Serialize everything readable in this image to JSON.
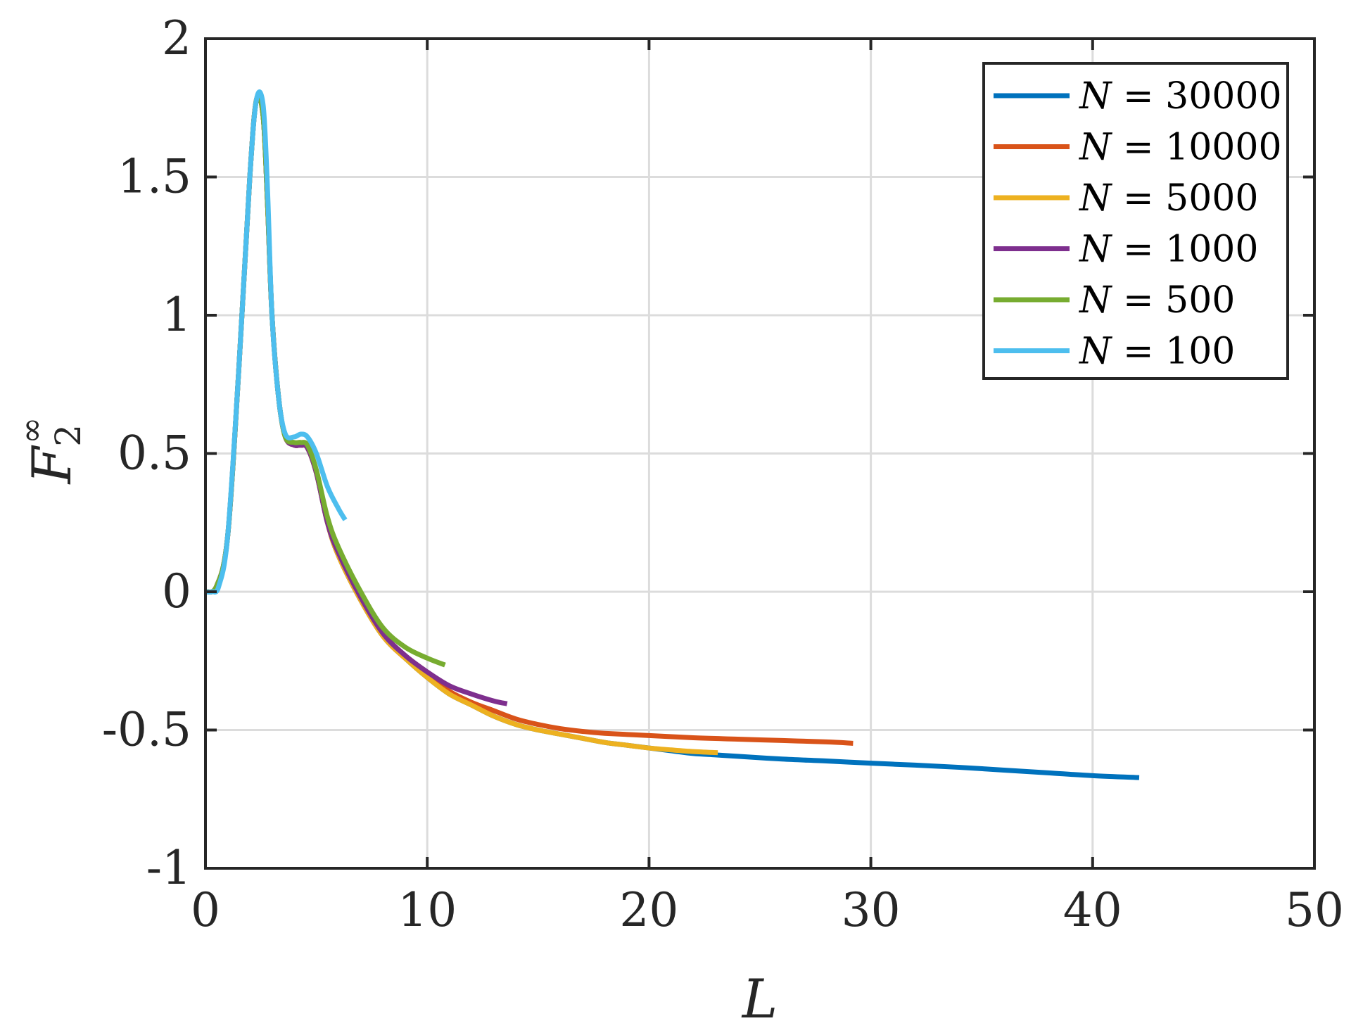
{
  "chart_data": {
    "type": "line",
    "xlabel": "L",
    "ylabel": {
      "base": "F",
      "superscript": "∞",
      "subscript": "2"
    },
    "xlim": [
      0,
      50
    ],
    "ylim": [
      -1,
      2
    ],
    "x_ticks": [
      0,
      10,
      20,
      30,
      40,
      50
    ],
    "x_tick_labels": [
      "0",
      "10",
      "20",
      "30",
      "40",
      "50"
    ],
    "y_ticks": [
      -1,
      -0.5,
      0,
      0.5,
      1,
      1.5,
      2
    ],
    "y_tick_labels": [
      "-1",
      "-0.5",
      "0",
      "0.5",
      "1",
      "1.5",
      "2"
    ],
    "grid": true,
    "legend_position": "top-right",
    "series": [
      {
        "name": "N = 30000",
        "var": "N",
        "value": "30000",
        "color": "#0072BD",
        "x": [
          0,
          0.5,
          1,
          1.5,
          2,
          2.3,
          2.6,
          2.8,
          3,
          3.3,
          3.6,
          4,
          4.3,
          4.6,
          5,
          5.5,
          6,
          7,
          8,
          9,
          10,
          11,
          12,
          13,
          14,
          15,
          16,
          17,
          18,
          19,
          20,
          21,
          22,
          23,
          24,
          26,
          28,
          30,
          32,
          34,
          36,
          38,
          40,
          42.1
        ],
        "y": [
          0,
          0.02,
          0.2,
          0.8,
          1.5,
          1.78,
          1.72,
          1.4,
          1.0,
          0.7,
          0.56,
          0.53,
          0.53,
          0.52,
          0.43,
          0.25,
          0.13,
          -0.03,
          -0.16,
          -0.24,
          -0.31,
          -0.37,
          -0.41,
          -0.45,
          -0.48,
          -0.5,
          -0.515,
          -0.53,
          -0.545,
          -0.555,
          -0.565,
          -0.575,
          -0.585,
          -0.59,
          -0.595,
          -0.605,
          -0.612,
          -0.62,
          -0.627,
          -0.635,
          -0.645,
          -0.655,
          -0.665,
          -0.672
        ]
      },
      {
        "name": "N = 10000",
        "var": "N",
        "value": "10000",
        "color": "#D95319",
        "x": [
          0,
          0.5,
          1,
          1.5,
          2,
          2.3,
          2.6,
          2.8,
          3,
          3.3,
          3.6,
          4,
          4.3,
          4.6,
          5,
          5.5,
          6,
          7,
          8,
          9,
          10,
          11,
          12,
          13,
          14,
          15,
          16,
          17,
          18,
          20,
          22,
          24,
          26,
          28,
          29.2
        ],
        "y": [
          0,
          0.02,
          0.2,
          0.8,
          1.5,
          1.78,
          1.72,
          1.4,
          1.0,
          0.7,
          0.56,
          0.53,
          0.53,
          0.52,
          0.43,
          0.25,
          0.13,
          -0.03,
          -0.16,
          -0.24,
          -0.3,
          -0.36,
          -0.4,
          -0.43,
          -0.46,
          -0.48,
          -0.495,
          -0.505,
          -0.512,
          -0.52,
          -0.528,
          -0.533,
          -0.538,
          -0.543,
          -0.548
        ]
      },
      {
        "name": "N = 5000",
        "var": "N",
        "value": "5000",
        "color": "#EDB120",
        "x": [
          0,
          0.5,
          1,
          1.5,
          2,
          2.3,
          2.6,
          2.8,
          3,
          3.3,
          3.6,
          4,
          4.3,
          4.6,
          5,
          5.5,
          6,
          7,
          8,
          9,
          10,
          11,
          12,
          13,
          14,
          15,
          16,
          17,
          18,
          19,
          20,
          21,
          22,
          23.1
        ],
        "y": [
          0,
          0.02,
          0.2,
          0.8,
          1.5,
          1.78,
          1.72,
          1.4,
          1.0,
          0.7,
          0.56,
          0.53,
          0.53,
          0.52,
          0.43,
          0.25,
          0.13,
          -0.03,
          -0.16,
          -0.24,
          -0.31,
          -0.37,
          -0.41,
          -0.45,
          -0.48,
          -0.5,
          -0.515,
          -0.53,
          -0.545,
          -0.555,
          -0.565,
          -0.572,
          -0.578,
          -0.582
        ]
      },
      {
        "name": "N = 1000",
        "var": "N",
        "value": "1000",
        "color": "#7E2F8E",
        "x": [
          0,
          0.5,
          1,
          1.5,
          2,
          2.3,
          2.6,
          2.8,
          3,
          3.3,
          3.6,
          4,
          4.3,
          4.6,
          5,
          5.5,
          6,
          7,
          8,
          9,
          10,
          11,
          12,
          13,
          13.6
        ],
        "y": [
          0,
          0.02,
          0.2,
          0.8,
          1.5,
          1.78,
          1.72,
          1.4,
          1.0,
          0.7,
          0.56,
          0.53,
          0.53,
          0.52,
          0.43,
          0.25,
          0.14,
          -0.02,
          -0.15,
          -0.23,
          -0.29,
          -0.34,
          -0.37,
          -0.395,
          -0.405
        ]
      },
      {
        "name": "N = 500",
        "var": "N",
        "value": "500",
        "color": "#77AC30",
        "x": [
          0,
          0.5,
          1,
          1.5,
          2,
          2.3,
          2.6,
          2.8,
          3,
          3.3,
          3.6,
          4,
          4.3,
          4.6,
          5,
          5.5,
          6,
          7,
          8,
          9,
          10,
          10.8
        ],
        "y": [
          0,
          0.02,
          0.2,
          0.8,
          1.5,
          1.78,
          1.72,
          1.4,
          1.0,
          0.7,
          0.56,
          0.54,
          0.54,
          0.53,
          0.44,
          0.27,
          0.16,
          0.0,
          -0.13,
          -0.2,
          -0.24,
          -0.265
        ]
      },
      {
        "name": "N = 100",
        "var": "N",
        "value": "100",
        "color": "#4DBEEE",
        "x": [
          0,
          0.3,
          0.6,
          1,
          1.5,
          2,
          2.3,
          2.6,
          2.8,
          3,
          3.3,
          3.6,
          4,
          4.3,
          4.6,
          5,
          5.5,
          6,
          6.3
        ],
        "y": [
          0,
          0,
          0.02,
          0.2,
          0.8,
          1.5,
          1.78,
          1.76,
          1.45,
          1.0,
          0.7,
          0.57,
          0.56,
          0.57,
          0.56,
          0.5,
          0.38,
          0.3,
          0.26
        ]
      }
    ]
  }
}
